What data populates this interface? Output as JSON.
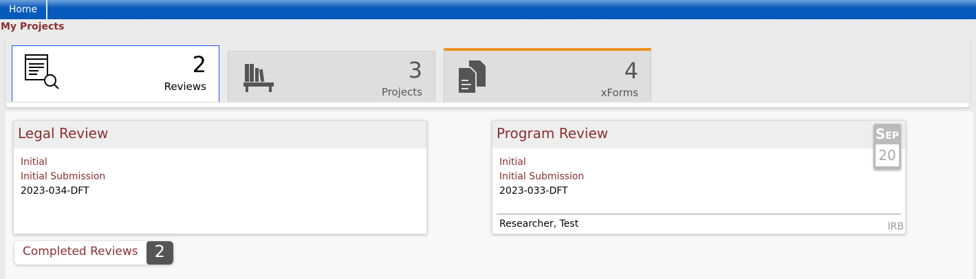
{
  "nav": {
    "home": "Home"
  },
  "page_title": "My Projects",
  "tabs": [
    {
      "count": "2",
      "label": "Reviews",
      "icon": "review-search-icon",
      "active": true
    },
    {
      "count": "3",
      "label": "Projects",
      "icon": "bookshelf-icon"
    },
    {
      "count": "4",
      "label": "xForms",
      "icon": "documents-icon"
    }
  ],
  "cards": [
    {
      "title": "Legal Review",
      "status": "Initial",
      "type": "Initial Submission",
      "id": "2023-034-DFT"
    },
    {
      "title": "Program Review",
      "status": "Initial",
      "type": "Initial Submission",
      "id": "2023-033-DFT",
      "date_month": "Sep",
      "date_day": "20",
      "researcher": "Researcher, Test",
      "logo_alt": "IRB"
    }
  ],
  "completed": {
    "label": "Completed Reviews",
    "count": "2"
  },
  "colors": {
    "accent": "#8b2f2f",
    "nav": "#005ab8",
    "active_tab_border": "#f0901e"
  }
}
